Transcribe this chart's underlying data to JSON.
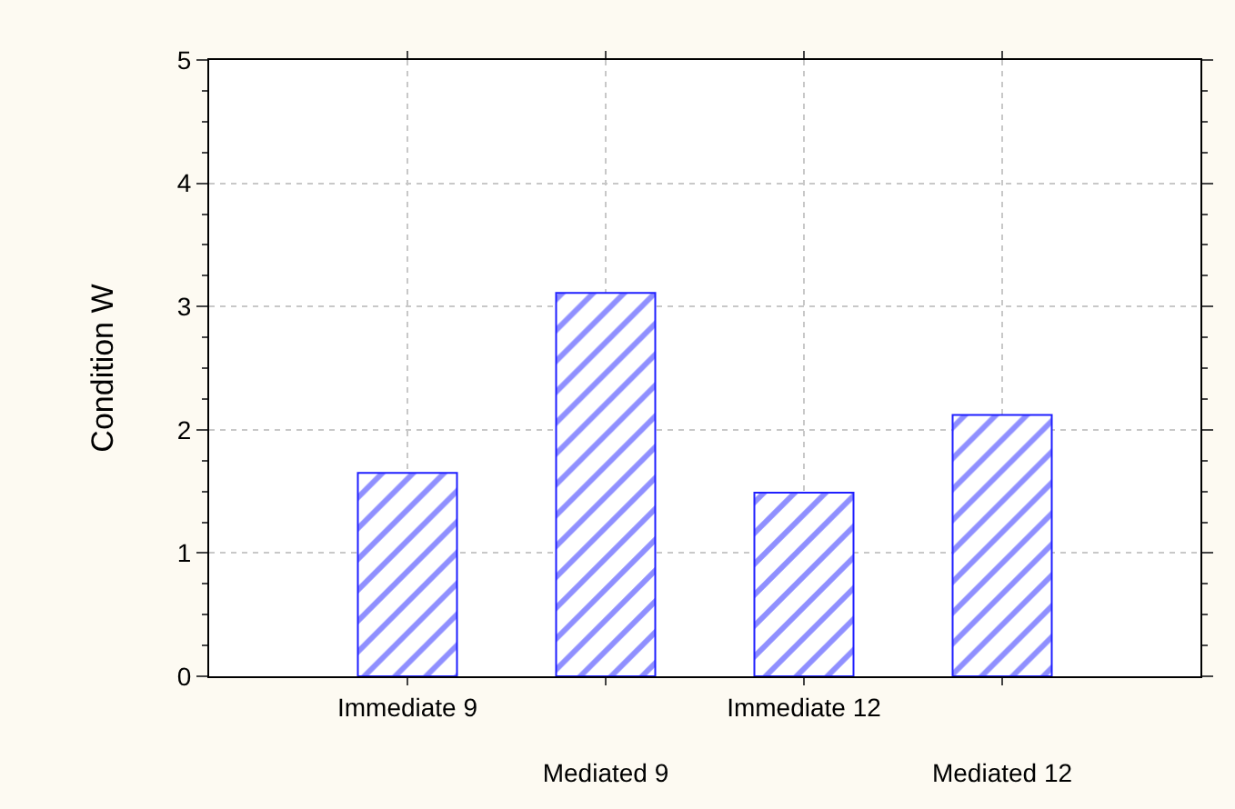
{
  "chart_data": {
    "type": "bar",
    "categories": [
      "Immediate 9",
      "Mediated 9",
      "Immediate 12",
      "Mediated 12"
    ],
    "values": [
      1.65,
      3.11,
      1.49,
      2.12
    ],
    "color": "#1f1fff",
    "ylabel": "Condition W",
    "ylim": [
      0,
      5
    ],
    "yticks": [
      0,
      1,
      2,
      3,
      4,
      5
    ],
    "grid": true,
    "line_style": "dotted"
  }
}
